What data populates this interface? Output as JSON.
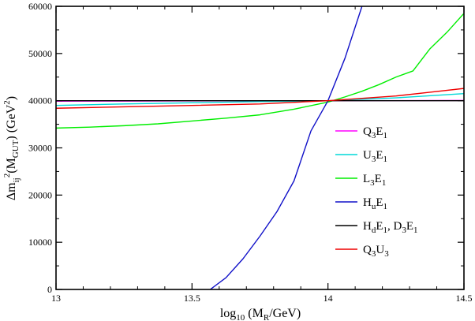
{
  "chart_data": {
    "type": "line",
    "title": "",
    "xlabel": {
      "main": "log",
      "sub": "10",
      "after_open": " (M",
      "sub2": "R",
      "end": "/GeV)"
    },
    "ylabel": {
      "delta": "Δm",
      "sub1": "ij",
      "sup1": "2",
      "open": "(M",
      "sub2": "GUT",
      "close": ")  (GeV",
      "sup2": "2",
      "end": ")"
    },
    "xlim": [
      13,
      14.5
    ],
    "ylim": [
      0,
      60000
    ],
    "x_ticks": [
      "13",
      "13.5",
      "14",
      "14.5"
    ],
    "y_ticks": [
      "0",
      "10000",
      "20000",
      "30000",
      "40000",
      "50000",
      "60000"
    ],
    "legend_position": "center-right",
    "series": [
      {
        "name": "Q3E1",
        "label_parts": [
          [
            "Q",
            ""
          ],
          [
            "3",
            "sub"
          ],
          [
            "E",
            ""
          ],
          [
            "1",
            "sub"
          ]
        ],
        "color": "#ff00ff",
        "x": [
          13,
          13.25,
          13.5,
          13.75,
          14,
          14.25,
          14.5
        ],
        "y": [
          39900,
          39920,
          39950,
          39970,
          40000,
          40020,
          40050
        ]
      },
      {
        "name": "U3E1",
        "label_parts": [
          [
            "U",
            ""
          ],
          [
            "3",
            "sub"
          ],
          [
            "E",
            ""
          ],
          [
            "1",
            "sub"
          ]
        ],
        "color": "#00d8d8",
        "x": [
          13,
          13.25,
          13.5,
          13.75,
          14,
          14.25,
          14.5
        ],
        "y": [
          39000,
          39300,
          39550,
          39800,
          40000,
          40600,
          41500
        ]
      },
      {
        "name": "L3E1",
        "label_parts": [
          [
            "L",
            ""
          ],
          [
            "3",
            "sub"
          ],
          [
            "E",
            ""
          ],
          [
            "1",
            "sub"
          ]
        ],
        "color": "#00ee00",
        "x": [
          13,
          13.125,
          13.25,
          13.375,
          13.5,
          13.625,
          13.75,
          13.875,
          14,
          14.0625,
          14.125,
          14.1875,
          14.25,
          14.3125,
          14.375,
          14.4375,
          14.5
        ],
        "y": [
          34200,
          34400,
          34700,
          35100,
          35700,
          36300,
          37000,
          38200,
          39700,
          40800,
          42000,
          43400,
          45000,
          46300,
          51000,
          54500,
          58500
        ]
      },
      {
        "name": "HuE1",
        "label_parts": [
          [
            "H",
            ""
          ],
          [
            "u",
            "sub"
          ],
          [
            "E",
            ""
          ],
          [
            "1",
            "sub"
          ]
        ],
        "color": "#1010c8",
        "x": [
          13.567,
          13.625,
          13.6875,
          13.75,
          13.8125,
          13.875,
          13.9375,
          14,
          14.0625,
          14.125
        ],
        "y": [
          0,
          2500,
          6500,
          11300,
          16500,
          23000,
          33600,
          40000,
          49000,
          60000
        ]
      },
      {
        "name": "HdE1, D3E1",
        "label_parts": [
          [
            "H",
            ""
          ],
          [
            "d",
            "sub"
          ],
          [
            "E",
            ""
          ],
          [
            "1",
            "sub"
          ],
          [
            ", D",
            ""
          ],
          [
            "3",
            "sub"
          ],
          [
            "E",
            ""
          ],
          [
            "1",
            "sub"
          ]
        ],
        "color": "#000000",
        "x": [
          13,
          13.5,
          14,
          14.5
        ],
        "y": [
          40000,
          40000,
          40000,
          40000
        ]
      },
      {
        "name": "Q3U3",
        "label_parts": [
          [
            "Q",
            ""
          ],
          [
            "3",
            "sub"
          ],
          [
            "U",
            ""
          ],
          [
            "3",
            "sub"
          ]
        ],
        "color": "#ee0000",
        "x": [
          13,
          13.25,
          13.5,
          13.75,
          14,
          14.125,
          14.25,
          14.375,
          14.5
        ],
        "y": [
          38400,
          38700,
          39000,
          39300,
          40000,
          40500,
          41000,
          41800,
          42600
        ]
      }
    ]
  }
}
